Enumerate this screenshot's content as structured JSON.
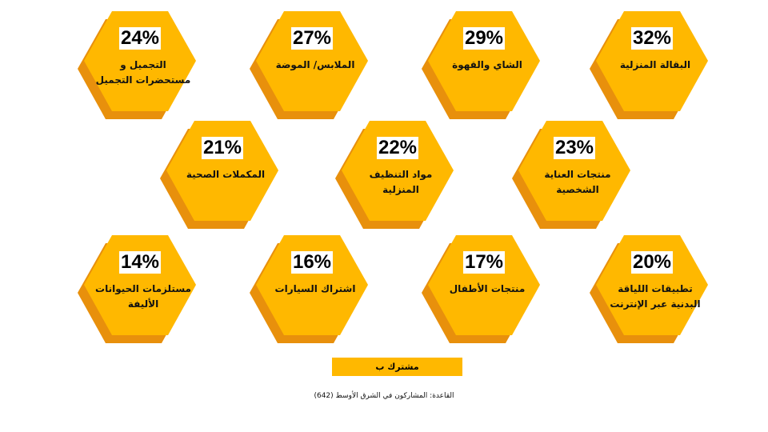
{
  "rows": [
    {
      "items": [
        {
          "value": "32%",
          "label": "البقالة المنزلية"
        },
        {
          "value": "29%",
          "label": "الشاي والقهوة"
        },
        {
          "value": "27%",
          "label": "الملابس/ الموضة"
        },
        {
          "value": "24%",
          "label": "التجميل و مستحضرات التجميل"
        }
      ]
    },
    {
      "items": [
        {
          "value": "23%",
          "label": "منتجات العناية الشخصية"
        },
        {
          "value": "22%",
          "label": "مواد التنظيف المنزلية"
        },
        {
          "value": "21%",
          "label": "المكملات الصحية"
        }
      ]
    },
    {
      "items": [
        {
          "value": "20%",
          "label": "تطبيقات اللياقة البدنية عبر الإنترنت"
        },
        {
          "value": "17%",
          "label": "منتجات الأطفال"
        },
        {
          "value": "16%",
          "label": "اشتراك السيارات"
        },
        {
          "value": "14%",
          "label": "مستلزمات الحيوانات الأليفة"
        }
      ]
    }
  ],
  "legend": "مشترك ب",
  "footnote": "القاعدة: المشاركون في الشرق الأوسط (642)"
}
